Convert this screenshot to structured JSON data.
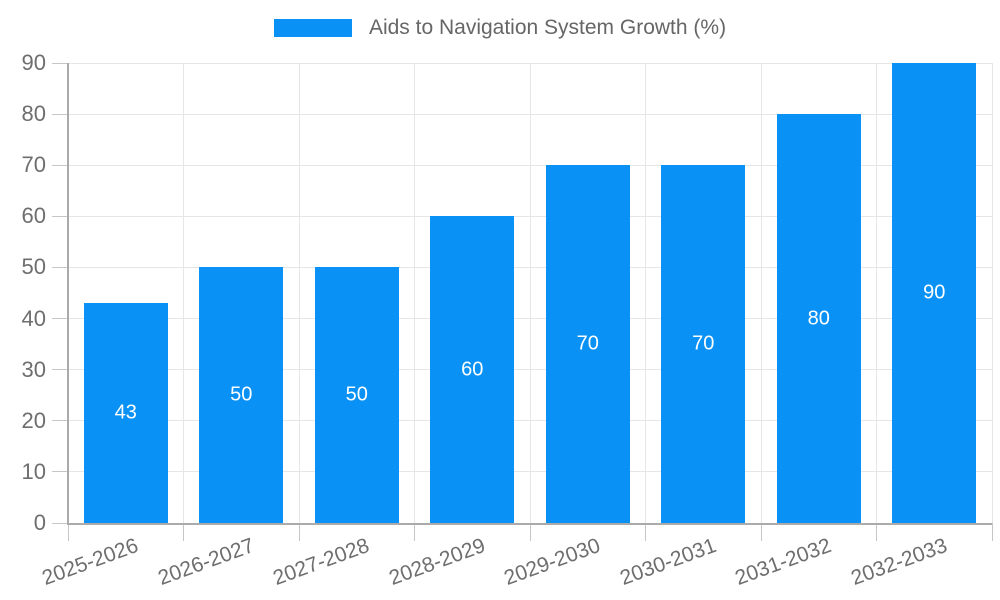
{
  "legend": {
    "label": "Aids to Navigation System Growth (%)"
  },
  "colors": {
    "bar": "#0a91f5",
    "grid": "#e6e6e6",
    "axis": "#ababab",
    "tick": "#c6c6c6",
    "tick_text": "#6e6e6e",
    "legend_text": "#666666",
    "value_label": "#ffffff",
    "background": "#ffffff"
  },
  "chart_data": {
    "type": "bar",
    "title": "Aids to Navigation System Growth (%)",
    "categories": [
      "2025-2026",
      "2026-2027",
      "2027-2028",
      "2028-2029",
      "2029-2030",
      "2030-2031",
      "2031-2032",
      "2032-2033"
    ],
    "values": [
      43,
      50,
      50,
      60,
      70,
      70,
      80,
      90
    ],
    "bar_value_labels": [
      "43",
      "50",
      "50",
      "60",
      "70",
      "70",
      "80",
      "90"
    ],
    "xlabel": "",
    "ylabel": "",
    "ylim": [
      0,
      90
    ],
    "yticks": [
      0,
      10,
      20,
      30,
      40,
      50,
      60,
      70,
      80,
      90
    ],
    "grid": true,
    "legend_position": "top",
    "bar_labels_inside": true,
    "x_label_rotation_deg": -20
  }
}
